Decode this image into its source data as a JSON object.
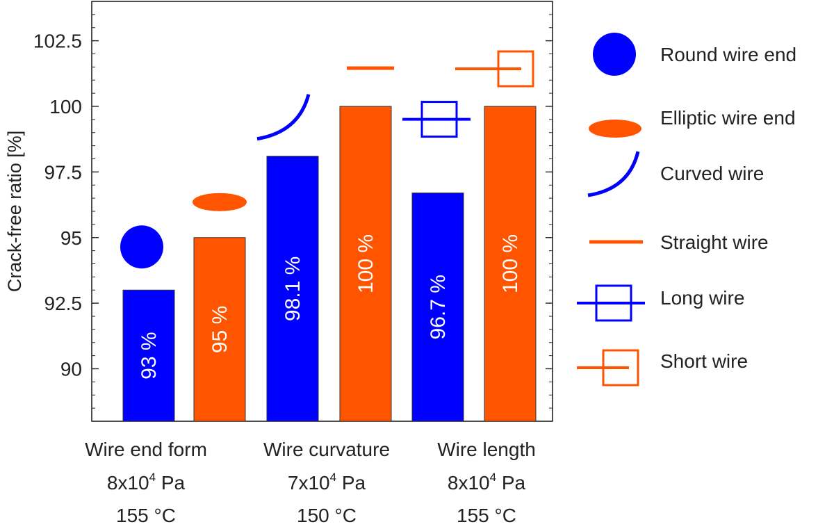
{
  "chart_data": {
    "type": "bar",
    "ylabel": "Crack-free ratio [%]",
    "ylim": [
      88,
      104
    ],
    "yticks": [
      90,
      92.5,
      95,
      97.5,
      100,
      102.5
    ],
    "ytick_labels": [
      "90",
      "92.5",
      "95",
      "97.5",
      "100",
      "102.5"
    ],
    "bars": [
      {
        "category": "Round wire end",
        "value": 93,
        "label": "93 %",
        "color": "#0000ff",
        "group": 0
      },
      {
        "category": "Elliptic wire end",
        "value": 95,
        "label": "95 %",
        "color": "#ff5500",
        "group": 0
      },
      {
        "category": "Curved wire",
        "value": 98.1,
        "label": "98.1 %",
        "color": "#0000ff",
        "group": 1
      },
      {
        "category": "Straight wire",
        "value": 100,
        "label": "100 %",
        "color": "#ff5500",
        "group": 1
      },
      {
        "category": "Long wire",
        "value": 96.7,
        "label": "96.7 %",
        "color": "#0000ff",
        "group": 2
      },
      {
        "category": "Short wire",
        "value": 100,
        "label": "100 %",
        "color": "#ff5500",
        "group": 2
      }
    ],
    "groups": [
      {
        "title": "Wire end form",
        "pressure_base": "8x10",
        "pressure_exp": "4",
        "pressure_unit": " Pa",
        "temperature": "155 °C"
      },
      {
        "title": "Wire curvature",
        "pressure_base": "7x10",
        "pressure_exp": "4",
        "pressure_unit": " Pa",
        "temperature": "150 °C"
      },
      {
        "title": "Wire length",
        "pressure_base": "8x10",
        "pressure_exp": "4",
        "pressure_unit": " Pa",
        "temperature": "155 °C"
      }
    ],
    "legend": [
      {
        "label": "Round wire end",
        "icon": "round-wire-end-icon",
        "color": "#0000ff"
      },
      {
        "label": "Elliptic wire end",
        "icon": "elliptic-wire-end-icon",
        "color": "#ff5500"
      },
      {
        "label": "Curved wire",
        "icon": "curved-wire-icon",
        "color": "#0000ff"
      },
      {
        "label": "Straight wire",
        "icon": "straight-wire-icon",
        "color": "#ff5500"
      },
      {
        "label": "Long wire",
        "icon": "long-wire-icon",
        "color": "#0000ff"
      },
      {
        "label": "Short wire",
        "icon": "short-wire-icon",
        "color": "#ff5500"
      }
    ],
    "legend_position": "right"
  }
}
